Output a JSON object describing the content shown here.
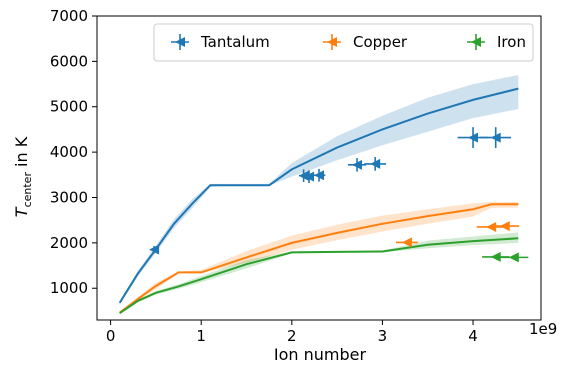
{
  "chart_data": {
    "type": "line",
    "xlabel": "Ion number",
    "ylabel_main": "T",
    "ylabel_sub": "center",
    "ylabel_tail": " in K",
    "x_multiplier_label": "1e9",
    "xlim": [
      -0.15,
      4.75
    ],
    "ylim": [
      300,
      7000
    ],
    "x_ticks": [
      0,
      1,
      2,
      3,
      4
    ],
    "x_tick_labels": [
      "0",
      "1",
      "2",
      "3",
      "4"
    ],
    "y_ticks": [
      1000,
      2000,
      3000,
      4000,
      5000,
      6000,
      7000
    ],
    "y_tick_labels": [
      "1000",
      "2000",
      "3000",
      "4000",
      "5000",
      "6000",
      "7000"
    ],
    "grid": false,
    "legend_position": "top-right",
    "series": [
      {
        "name": "Tantalum",
        "color": "#1f77b4",
        "curve_x": [
          0.1,
          0.3,
          0.5,
          0.7,
          0.9,
          1.1,
          1.2,
          1.5,
          1.75,
          2.0,
          2.5,
          3.0,
          3.5,
          4.0,
          4.5
        ],
        "curve_y": [
          680,
          1320,
          1860,
          2420,
          2860,
          3270,
          3270,
          3270,
          3270,
          3620,
          4100,
          4500,
          4850,
          5150,
          5400
        ],
        "band_low": [
          650,
          1260,
          1780,
          2320,
          2760,
          3230,
          3250,
          3260,
          3260,
          3460,
          3820,
          4150,
          4450,
          4750,
          4950
        ],
        "band_high": [
          710,
          1380,
          1940,
          2520,
          2960,
          3300,
          3300,
          3300,
          3300,
          3760,
          4350,
          4800,
          5200,
          5500,
          5700
        ],
        "points": [
          {
            "x": 0.48,
            "y": 1850,
            "xerr": 0.02,
            "yerr": 80
          },
          {
            "x": 2.13,
            "y": 3480,
            "xerr": 0.05,
            "yerr": 140
          },
          {
            "x": 2.19,
            "y": 3460,
            "xerr": 0.05,
            "yerr": 140
          },
          {
            "x": 2.3,
            "y": 3490,
            "xerr": 0.07,
            "yerr": 140
          },
          {
            "x": 2.72,
            "y": 3720,
            "xerr": 0.1,
            "yerr": 150
          },
          {
            "x": 2.92,
            "y": 3740,
            "xerr": 0.12,
            "yerr": 150
          },
          {
            "x": 4.0,
            "y": 4320,
            "xerr": 0.17,
            "yerr": 230
          },
          {
            "x": 4.25,
            "y": 4320,
            "xerr": 0.17,
            "yerr": 230
          }
        ]
      },
      {
        "name": "Copper",
        "color": "#ff7f0e",
        "curve_x": [
          0.1,
          0.3,
          0.5,
          0.75,
          1.0,
          1.5,
          2.0,
          2.5,
          3.0,
          3.5,
          4.0,
          4.2,
          4.5
        ],
        "curve_y": [
          460,
          760,
          1050,
          1350,
          1350,
          1680,
          2000,
          2220,
          2420,
          2590,
          2740,
          2850,
          2850
        ],
        "band_low": [
          440,
          720,
          980,
          1330,
          1330,
          1560,
          1850,
          2060,
          2250,
          2420,
          2580,
          2770,
          2780
        ],
        "band_high": [
          490,
          800,
          1120,
          1370,
          1400,
          1820,
          2160,
          2400,
          2600,
          2740,
          2870,
          2900,
          2900
        ],
        "points": [
          {
            "x": 3.27,
            "y": 2010,
            "xerr": 0.12,
            "yerr": 0
          },
          {
            "x": 4.2,
            "y": 2350,
            "xerr": 0.16,
            "yerr": 0
          },
          {
            "x": 4.35,
            "y": 2370,
            "xerr": 0.16,
            "yerr": 0
          }
        ]
      },
      {
        "name": "Iron",
        "color": "#2ca02c",
        "curve_x": [
          0.1,
          0.3,
          0.5,
          0.75,
          1.0,
          1.5,
          2.0,
          2.5,
          3.0,
          3.5,
          4.0,
          4.5
        ],
        "curve_y": [
          450,
          720,
          900,
          1040,
          1200,
          1530,
          1790,
          1800,
          1810,
          1960,
          2040,
          2100
        ],
        "band_low": [
          430,
          690,
          860,
          990,
          1130,
          1440,
          1770,
          1780,
          1790,
          1880,
          1950,
          2000
        ],
        "band_high": [
          470,
          750,
          940,
          1090,
          1270,
          1620,
          1810,
          1820,
          1830,
          2050,
          2140,
          2230
        ],
        "points": [
          {
            "x": 4.25,
            "y": 1690,
            "xerr": 0.15,
            "yerr": 0
          },
          {
            "x": 4.45,
            "y": 1680,
            "xerr": 0.16,
            "yerr": 0
          }
        ]
      }
    ]
  }
}
